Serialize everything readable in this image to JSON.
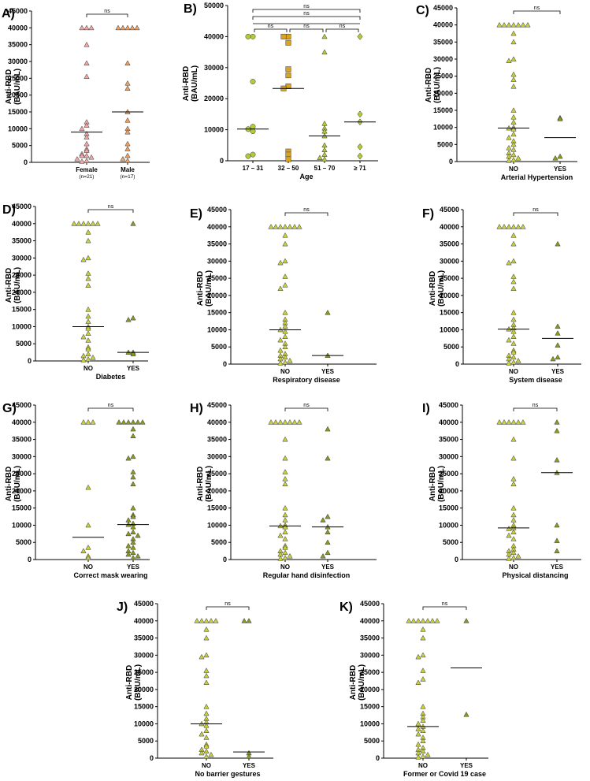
{
  "colors": {
    "green": "#b5c93a",
    "orange": "#f0a060",
    "pink": "#f2a6a6",
    "gold": "#d9a520",
    "yellowgreen": "#c8cf3c"
  },
  "chart_data": [
    {
      "id": "A",
      "letter": "A)",
      "type": "scatter",
      "ylabel": "Anti-RBD (BAU/mL)",
      "ylim": [
        0,
        45000
      ],
      "yticks": [
        0,
        5000,
        10000,
        15000,
        20000,
        25000,
        30000,
        35000,
        40000,
        45000
      ],
      "xlabel": "",
      "categories": [
        {
          "label": "Female",
          "sub": "(n=21)",
          "marker": "triangle",
          "color": "#f2a6a6",
          "median": 9000,
          "values": [
            40000,
            40000,
            40000,
            35000,
            29500,
            25500,
            12000,
            11000,
            10000,
            8500,
            7500,
            5500,
            4000,
            3500,
            2500,
            2000,
            2000,
            1500,
            1000,
            500,
            300
          ]
        },
        {
          "label": "Male",
          "sub": "(n=17)",
          "marker": "triangle",
          "color": "#f0a060",
          "median": 15000,
          "values": [
            40000,
            40000,
            40000,
            40000,
            40000,
            29500,
            23500,
            22000,
            15000,
            12500,
            10000,
            9000,
            5500,
            4000,
            2000,
            1000,
            500
          ]
        }
      ],
      "comparisons": [
        {
          "from": 0,
          "to": 1,
          "label": "ns"
        }
      ]
    },
    {
      "id": "B",
      "letter": "B)",
      "type": "scatter",
      "ylabel": "Anti-RBD (BAU/mL)",
      "ylim": [
        0,
        50000
      ],
      "yticks": [
        0,
        10000,
        20000,
        30000,
        40000,
        50000
      ],
      "xlabel": "Age",
      "categories": [
        {
          "label": "17 – 31",
          "sub": "",
          "marker": "circle",
          "color": "#b5c93a",
          "median": 10200,
          "values": [
            40000,
            40000,
            25500,
            11000,
            10200,
            9500,
            2000,
            1500
          ]
        },
        {
          "label": "32 – 50",
          "sub": "",
          "marker": "square",
          "color": "#d9a520",
          "median": 23300,
          "values": [
            40000,
            40000,
            38000,
            29500,
            27500,
            24000,
            23300,
            3000,
            2000,
            500
          ]
        },
        {
          "label": "51 – 70",
          "sub": "",
          "marker": "triangle",
          "color": "#b5c93a",
          "median": 8000,
          "values": [
            40000,
            35000,
            12000,
            10500,
            9500,
            8000,
            5000,
            3500,
            2000,
            1000,
            500
          ]
        },
        {
          "label": "≥ 71",
          "sub": "",
          "marker": "diamond",
          "color": "#b5c93a",
          "median": 12500,
          "values": [
            40000,
            15000,
            12500,
            4500,
            1500
          ]
        }
      ],
      "comparisons": [
        {
          "from": 0,
          "to": 1,
          "label": "ns"
        },
        {
          "from": 1,
          "to": 2,
          "label": "ns"
        },
        {
          "from": 2,
          "to": 3,
          "label": "ns"
        },
        {
          "from": 0,
          "to": 3,
          "label": "ns"
        },
        {
          "from": 0,
          "to": 3,
          "label": "ns"
        }
      ]
    },
    {
      "id": "C",
      "letter": "C)",
      "type": "scatter",
      "ylabel": "Anti-RBD (BAU/mL)",
      "ylim": [
        0,
        45000
      ],
      "yticks": [
        0,
        5000,
        10000,
        15000,
        20000,
        25000,
        30000,
        35000,
        40000,
        45000
      ],
      "xlabel": "Arterial Hypertension",
      "categories": [
        {
          "label": "NO",
          "sub": "",
          "marker": "triangle",
          "color": "#c8cf3c",
          "median": 9800,
          "values": [
            40000,
            40000,
            40000,
            40000,
            40000,
            40000,
            40000,
            37500,
            35000,
            30000,
            29500,
            25500,
            24000,
            22000,
            15000,
            13000,
            11500,
            10000,
            9800,
            9500,
            8000,
            7000,
            6000,
            5000,
            4000,
            3500,
            2500,
            2000,
            1500,
            1000,
            500,
            300
          ]
        },
        {
          "label": "YES",
          "sub": "",
          "marker": "triangle",
          "color": "#8a9a20",
          "median": 7000,
          "values": [
            12800,
            12500,
            1500,
            1000
          ]
        }
      ],
      "comparisons": [
        {
          "from": 0,
          "to": 1,
          "label": "ns"
        }
      ]
    },
    {
      "id": "D",
      "letter": "D)",
      "type": "scatter",
      "ylabel": "Anti-RBD (BAU/mL)",
      "ylim": [
        0,
        45000
      ],
      "yticks": [
        0,
        5000,
        10000,
        15000,
        20000,
        25000,
        30000,
        35000,
        40000,
        45000
      ],
      "xlabel": "Diabetes",
      "categories": [
        {
          "label": "NO",
          "sub": "",
          "marker": "triangle",
          "color": "#c8cf3c",
          "median": 10000,
          "values": [
            40000,
            40000,
            40000,
            40000,
            40000,
            40000,
            37500,
            35000,
            30000,
            29500,
            25500,
            24000,
            22000,
            15000,
            13000,
            11500,
            10000,
            9500,
            8000,
            7000,
            6000,
            4000,
            3500,
            2000,
            1500,
            1000,
            500,
            300
          ]
        },
        {
          "label": "YES",
          "sub": "",
          "marker": "triangle",
          "color": "#8a9a20",
          "median": 2500,
          "values": [
            40000,
            12500,
            12000,
            2500,
            2500,
            2000
          ]
        }
      ],
      "comparisons": [
        {
          "from": 0,
          "to": 1,
          "label": "ns"
        }
      ]
    },
    {
      "id": "E",
      "letter": "E)",
      "type": "scatter",
      "ylabel": "Anti-RBD (BAU/mL)",
      "ylim": [
        0,
        45000
      ],
      "yticks": [
        0,
        5000,
        10000,
        15000,
        20000,
        25000,
        30000,
        35000,
        40000,
        45000
      ],
      "xlabel": "Respiratory disease",
      "categories": [
        {
          "label": "NO",
          "sub": "",
          "marker": "triangle",
          "color": "#c8cf3c",
          "median": 10000,
          "values": [
            40000,
            40000,
            40000,
            40000,
            40000,
            40000,
            40000,
            37500,
            35000,
            30000,
            29500,
            25500,
            23000,
            22000,
            15000,
            13000,
            12000,
            11000,
            10000,
            9500,
            8000,
            7000,
            6000,
            5000,
            4000,
            3000,
            2500,
            2000,
            1500,
            1000,
            500,
            300
          ]
        },
        {
          "label": "YES",
          "sub": "",
          "marker": "triangle",
          "color": "#8a9a20",
          "median": 2500,
          "values": [
            15000,
            2500
          ]
        }
      ],
      "comparisons": [
        {
          "from": 0,
          "to": 1,
          "label": "ns"
        }
      ]
    },
    {
      "id": "F",
      "letter": "F)",
      "type": "scatter",
      "ylabel": "Anti-RBD (BAU/mL)",
      "ylim": [
        0,
        45000
      ],
      "yticks": [
        0,
        5000,
        10000,
        15000,
        20000,
        25000,
        30000,
        35000,
        40000,
        45000
      ],
      "xlabel": "System disease",
      "categories": [
        {
          "label": "NO",
          "sub": "",
          "marker": "triangle",
          "color": "#c8cf3c",
          "median": 10200,
          "values": [
            40000,
            40000,
            40000,
            40000,
            40000,
            40000,
            37500,
            35000,
            30000,
            29500,
            25500,
            24000,
            22000,
            15000,
            13000,
            11500,
            10500,
            10200,
            9500,
            8000,
            7000,
            6000,
            4000,
            3500,
            2500,
            2000,
            1500,
            1000,
            500,
            300
          ]
        },
        {
          "label": "YES",
          "sub": "",
          "marker": "triangle",
          "color": "#8a9a20",
          "median": 7500,
          "values": [
            35000,
            11000,
            9000,
            5500,
            2000,
            1500
          ]
        }
      ],
      "comparisons": [
        {
          "from": 0,
          "to": 1,
          "label": "ns"
        }
      ]
    },
    {
      "id": "G",
      "letter": "G)",
      "type": "scatter",
      "ylabel": "Anti-RBD (BAU/mL)",
      "ylim": [
        0,
        45000
      ],
      "yticks": [
        0,
        5000,
        10000,
        15000,
        20000,
        25000,
        30000,
        35000,
        40000,
        45000
      ],
      "xlabel": "Correct mask wearing",
      "categories": [
        {
          "label": "NO",
          "sub": "",
          "marker": "triangle",
          "color": "#c8cf3c",
          "median": 6500,
          "values": [
            40000,
            40000,
            40000,
            21000,
            10000,
            3500,
            2500,
            1000,
            500
          ]
        },
        {
          "label": "YES",
          "sub": "",
          "marker": "triangle",
          "color": "#8a9a20",
          "median": 10200,
          "values": [
            40000,
            40000,
            40000,
            40000,
            40000,
            40000,
            38000,
            36000,
            30000,
            29500,
            25500,
            24000,
            22000,
            15000,
            13000,
            12500,
            11500,
            10500,
            10200,
            9500,
            8000,
            7500,
            7000,
            6000,
            5000,
            4000,
            3500,
            2500,
            2000,
            1500,
            1000,
            500
          ]
        }
      ],
      "comparisons": [
        {
          "from": 0,
          "to": 1,
          "label": "ns"
        }
      ]
    },
    {
      "id": "H",
      "letter": "H)",
      "type": "scatter",
      "ylabel": "Anti-RBD (BAU/mL)",
      "ylim": [
        0,
        45000
      ],
      "yticks": [
        0,
        5000,
        10000,
        15000,
        20000,
        25000,
        30000,
        35000,
        40000,
        45000
      ],
      "xlabel": "Regular hand disinfection",
      "categories": [
        {
          "label": "NO",
          "sub": "",
          "marker": "triangle",
          "color": "#c8cf3c",
          "median": 9800,
          "values": [
            40000,
            40000,
            40000,
            40000,
            40000,
            40000,
            40000,
            35000,
            29500,
            25500,
            23500,
            22000,
            15000,
            13000,
            11500,
            10000,
            9800,
            9500,
            8000,
            7000,
            6000,
            4000,
            3500,
            2500,
            2000,
            1500,
            1000,
            500,
            300
          ]
        },
        {
          "label": "YES",
          "sub": "",
          "marker": "triangle",
          "color": "#8a9a20",
          "median": 9500,
          "values": [
            38000,
            29500,
            12500,
            11500,
            9500,
            8000,
            5000,
            2000,
            1000
          ]
        }
      ],
      "comparisons": [
        {
          "from": 0,
          "to": 1,
          "label": "ns"
        }
      ]
    },
    {
      "id": "I",
      "letter": "I)",
      "type": "scatter",
      "ylabel": "Anti-RBD (BAU/mL)",
      "ylim": [
        0,
        45000
      ],
      "yticks": [
        0,
        5000,
        10000,
        15000,
        20000,
        25000,
        30000,
        35000,
        40000,
        45000
      ],
      "xlabel": "Physical distancing",
      "categories": [
        {
          "label": "NO",
          "sub": "",
          "marker": "triangle",
          "color": "#c8cf3c",
          "median": 9200,
          "values": [
            40000,
            40000,
            40000,
            40000,
            40000,
            40000,
            35000,
            29500,
            23500,
            22000,
            15000,
            13000,
            11500,
            10000,
            9200,
            9000,
            8000,
            7000,
            6000,
            4000,
            3000,
            2500,
            2000,
            1500,
            1000,
            500,
            300
          ]
        },
        {
          "label": "YES",
          "sub": "",
          "marker": "triangle",
          "color": "#8a9a20",
          "median": 25300,
          "values": [
            40000,
            37500,
            29000,
            25300,
            10000,
            5500,
            2500
          ]
        }
      ],
      "comparisons": [
        {
          "from": 0,
          "to": 1,
          "label": "ns"
        }
      ]
    },
    {
      "id": "J",
      "letter": "J)",
      "type": "scatter",
      "ylabel": "Anti-RBD (BAU/mL)",
      "ylim": [
        0,
        45000
      ],
      "yticks": [
        0,
        5000,
        10000,
        15000,
        20000,
        25000,
        30000,
        35000,
        40000,
        45000
      ],
      "xlabel": "No barrier gestures",
      "categories": [
        {
          "label": "NO",
          "sub": "",
          "marker": "triangle",
          "color": "#c8cf3c",
          "median": 10000,
          "values": [
            40000,
            40000,
            40000,
            40000,
            40000,
            37500,
            35000,
            30000,
            29500,
            25500,
            24000,
            22000,
            15000,
            13000,
            11500,
            10500,
            10000,
            9500,
            8000,
            7000,
            6000,
            4000,
            3500,
            2500,
            2000,
            1500,
            1000,
            500
          ]
        },
        {
          "label": "YES",
          "sub": "",
          "marker": "triangle",
          "color": "#8a9a20",
          "median": 1800,
          "values": [
            40000,
            40000,
            1500,
            500
          ]
        }
      ],
      "comparisons": [
        {
          "from": 0,
          "to": 1,
          "label": "ns"
        }
      ]
    },
    {
      "id": "K",
      "letter": "K)",
      "type": "scatter",
      "ylabel": "Anti-RBD (BAU/mL)",
      "ylim": [
        0,
        45000
      ],
      "yticks": [
        0,
        5000,
        10000,
        15000,
        20000,
        25000,
        30000,
        35000,
        40000,
        45000
      ],
      "xlabel": "Former or Covid 19 case",
      "categories": [
        {
          "label": "NO",
          "sub": "",
          "marker": "triangle",
          "color": "#c8cf3c",
          "median": 9200,
          "values": [
            40000,
            40000,
            40000,
            40000,
            40000,
            40000,
            40000,
            37500,
            35000,
            30000,
            29500,
            25500,
            23000,
            22000,
            15000,
            13000,
            12000,
            11000,
            10000,
            9200,
            8500,
            8000,
            7000,
            6000,
            5000,
            4000,
            3000,
            2500,
            2000,
            1500,
            1000,
            500,
            300
          ]
        },
        {
          "label": "YES",
          "sub": "",
          "marker": "triangle",
          "color": "#8a9a20",
          "median": 26300,
          "values": [
            40000,
            12700
          ]
        }
      ],
      "comparisons": [
        {
          "from": 0,
          "to": 1,
          "label": "ns"
        }
      ]
    }
  ]
}
